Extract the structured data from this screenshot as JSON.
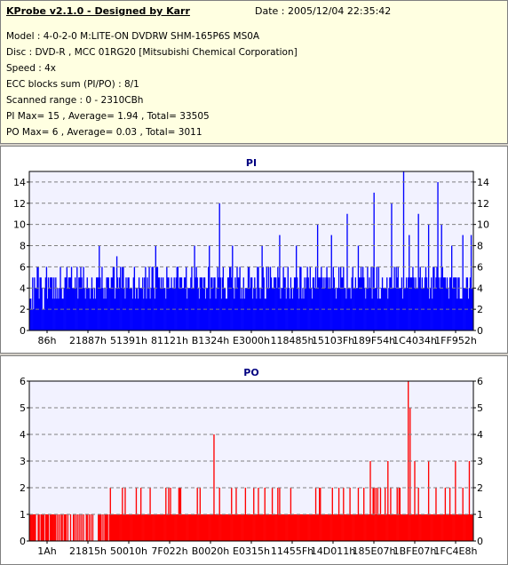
{
  "info": {
    "header": "KProbe v2.1.0 - Designed by Karr",
    "date": "Date : 2005/12/04 22:35:42",
    "lines": [
      "Model : 4-0-2-0 M:LITE-ON DVDRW SHM-165P6S MS0A",
      "Disc : DVD-R , MCC 01RG20   [Mitsubishi Chemical Corporation]",
      "Speed : 4x",
      "ECC blocks sum (PI/PO) : 8/1",
      "Scanned range : 0 - 2310CBh",
      "PI Max= 15 , Average= 1.94 , Total= 33505",
      "PO Max= 6 , Average= 0.03 , Total= 3011"
    ]
  },
  "chart_data": [
    {
      "type": "bar",
      "title": "PI",
      "color": "#0000ff",
      "ylim": [
        0,
        15
      ],
      "yticks": [
        0,
        2,
        4,
        6,
        8,
        10,
        12,
        14
      ],
      "xlim": [
        0,
        2296203
      ],
      "xtick_labels": [
        "86h",
        "21887h",
        "51391h",
        "81121h",
        "B1324h",
        "E3000h",
        "118485h",
        "15103Fh",
        "189F54h",
        "1C4034h",
        "1FF952h"
      ],
      "grid": true,
      "baseline_range": [
        3,
        6
      ],
      "spikes": [
        {
          "x": 360000,
          "y": 8
        },
        {
          "x": 450000,
          "y": 7
        },
        {
          "x": 650000,
          "y": 8
        },
        {
          "x": 850000,
          "y": 8
        },
        {
          "x": 930000,
          "y": 8
        },
        {
          "x": 980000,
          "y": 12
        },
        {
          "x": 1050000,
          "y": 8
        },
        {
          "x": 1200000,
          "y": 8
        },
        {
          "x": 1290000,
          "y": 9
        },
        {
          "x": 1380000,
          "y": 8
        },
        {
          "x": 1490000,
          "y": 10
        },
        {
          "x": 1560000,
          "y": 9
        },
        {
          "x": 1640000,
          "y": 11
        },
        {
          "x": 1700000,
          "y": 8
        },
        {
          "x": 1780000,
          "y": 13
        },
        {
          "x": 1870000,
          "y": 12
        },
        {
          "x": 1935000,
          "y": 15
        },
        {
          "x": 1960000,
          "y": 9
        },
        {
          "x": 2010000,
          "y": 11
        },
        {
          "x": 2060000,
          "y": 10
        },
        {
          "x": 2110000,
          "y": 14
        },
        {
          "x": 2130000,
          "y": 10
        },
        {
          "x": 2180000,
          "y": 8
        },
        {
          "x": 2240000,
          "y": 9
        },
        {
          "x": 2280000,
          "y": 9
        }
      ]
    },
    {
      "type": "bar",
      "title": "PO",
      "color": "#ff0000",
      "ylim": [
        0,
        6
      ],
      "yticks": [
        0,
        1,
        2,
        3,
        4,
        5,
        6
      ],
      "xlim": [
        0,
        2296203
      ],
      "xtick_labels": [
        "1Ah",
        "21815h",
        "50010h",
        "7F022h",
        "B0020h",
        "E0315h",
        "11455Fh",
        "14D011h",
        "185E07h",
        "1BFE07h",
        "1FC4E8h"
      ],
      "grid": true,
      "baseline_range": [
        0,
        1
      ],
      "spikes": [
        {
          "x": 480000,
          "y": 2
        },
        {
          "x": 620000,
          "y": 2
        },
        {
          "x": 780000,
          "y": 2
        },
        {
          "x": 950000,
          "y": 4
        },
        {
          "x": 1180000,
          "y": 2
        },
        {
          "x": 1350000,
          "y": 2
        },
        {
          "x": 1500000,
          "y": 2
        },
        {
          "x": 1620000,
          "y": 2
        },
        {
          "x": 1700000,
          "y": 2
        },
        {
          "x": 1760000,
          "y": 3
        },
        {
          "x": 1800000,
          "y": 2
        },
        {
          "x": 1850000,
          "y": 3
        },
        {
          "x": 1900000,
          "y": 2
        },
        {
          "x": 1955000,
          "y": 6
        },
        {
          "x": 1965000,
          "y": 5
        },
        {
          "x": 1990000,
          "y": 3
        },
        {
          "x": 2060000,
          "y": 3
        },
        {
          "x": 2100000,
          "y": 2
        },
        {
          "x": 2150000,
          "y": 2
        },
        {
          "x": 2200000,
          "y": 3
        },
        {
          "x": 2240000,
          "y": 2
        },
        {
          "x": 2270000,
          "y": 3
        }
      ]
    }
  ]
}
